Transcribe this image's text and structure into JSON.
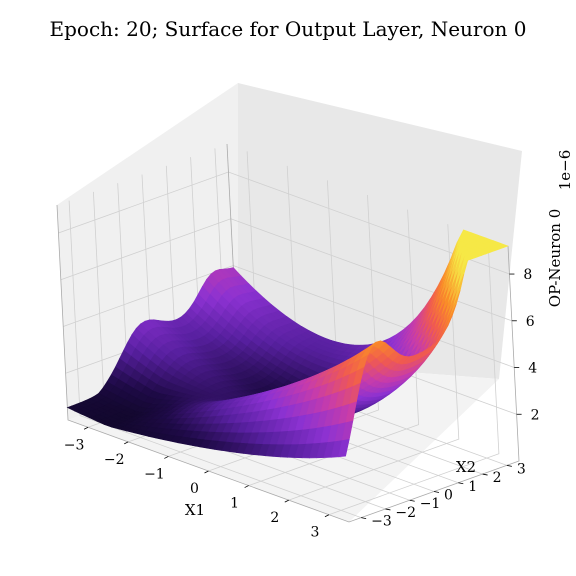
{
  "chart_data": {
    "type": "surface3d",
    "title": "Epoch: 20; Surface for Output Layer, Neuron 0",
    "xlabel": "X1",
    "ylabel": "X2",
    "zlabel": "OP-Neuron 0",
    "z_offset_label": "1e−6",
    "x_ticks": [
      "−3",
      "−2",
      "−1",
      "0",
      "1",
      "2",
      "3"
    ],
    "y_ticks": [
      "−3",
      "−2",
      "−1",
      "0",
      "1",
      "2",
      "3"
    ],
    "z_ticks": [
      "2",
      "4",
      "6",
      "8"
    ],
    "xlim": [
      -3.5,
      3.5
    ],
    "ylim": [
      -3.5,
      3.5
    ],
    "zlim": [
      0,
      9.2
    ],
    "z_scale": 1e-06,
    "colormap": "plasma-like (black → purple → orange → yellow)",
    "grid": true,
    "surface_samples": [
      {
        "x1": -3.5,
        "x2": -3.5,
        "z": 1.2
      },
      {
        "x1": -3.5,
        "x2": 0.0,
        "z": 2.6
      },
      {
        "x1": -3.5,
        "x2": 3.5,
        "z": 1.8
      },
      {
        "x1": 0.0,
        "x2": -3.5,
        "z": 0.6
      },
      {
        "x1": 0.0,
        "x2": 0.0,
        "z": 0.4
      },
      {
        "x1": 0.0,
        "x2": 3.5,
        "z": 0.5
      },
      {
        "x1": 3.5,
        "x2": -3.5,
        "z": 0.9
      },
      {
        "x1": 3.5,
        "x2": 0.0,
        "z": 2.3
      },
      {
        "x1": 3.5,
        "x2": 3.5,
        "z": 9.2
      }
    ]
  }
}
